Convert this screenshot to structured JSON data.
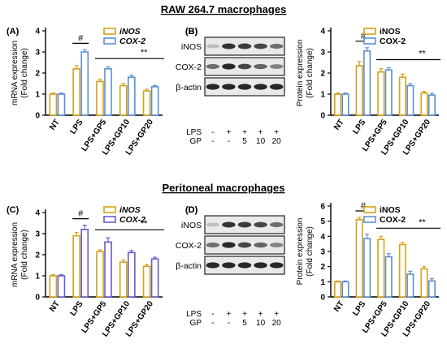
{
  "sections": [
    {
      "title": "RAW 264.7 macrophages"
    },
    {
      "title": "Peritoneal macrophages"
    }
  ],
  "colors": {
    "inos": "#d4a21b",
    "cox2": "#5b8fd4",
    "cox2_mrna_bottom": "#6a5acd",
    "bar_fill": "#ffffff",
    "axis": "#000000"
  },
  "chart_data": [
    {
      "panel": "(A)",
      "type": "bar",
      "ylabel": "mRNA expression\n(Fold change)",
      "ylim": [
        0,
        4
      ],
      "yticks": [
        0,
        1,
        2,
        3,
        4
      ],
      "categories": [
        "NT",
        "LPS",
        "LPS+GP5",
        "LPS+GP10",
        "LPS+GP20"
      ],
      "series": [
        {
          "name": "iNOS",
          "italic": true,
          "color_key": "inos",
          "values": [
            1.0,
            2.2,
            1.6,
            1.4,
            1.15
          ],
          "errors": [
            0.05,
            0.15,
            0.1,
            0.1,
            0.08
          ]
        },
        {
          "name": "COX-2",
          "italic": true,
          "color_key": "cox2",
          "values": [
            1.0,
            3.0,
            2.2,
            1.8,
            1.35
          ],
          "errors": [
            0.05,
            0.1,
            0.1,
            0.1,
            0.06
          ]
        }
      ],
      "annotations": [
        {
          "text": "#"
        },
        {
          "text": "**"
        }
      ]
    },
    {
      "panel": "(B)",
      "type": "bar",
      "ylabel": "Protein expression\n(Fold change)",
      "ylim": [
        0,
        4
      ],
      "yticks": [
        0,
        1,
        2,
        3,
        4
      ],
      "categories": [
        "NT",
        "LPS",
        "LPS+GP5",
        "LPS+GP10",
        "LPS+GP20"
      ],
      "series": [
        {
          "name": "iNOS",
          "italic": false,
          "color_key": "inos",
          "values": [
            1.0,
            2.35,
            2.05,
            1.8,
            1.05
          ],
          "errors": [
            0.05,
            0.2,
            0.15,
            0.15,
            0.08
          ]
        },
        {
          "name": "COX-2",
          "italic": false,
          "color_key": "cox2",
          "values": [
            1.0,
            3.05,
            2.15,
            1.4,
            0.95
          ],
          "errors": [
            0.05,
            0.15,
            0.1,
            0.1,
            0.08
          ]
        }
      ],
      "annotations": [
        {
          "text": "#"
        },
        {
          "text": "**"
        }
      ]
    },
    {
      "panel": "(C)",
      "type": "bar",
      "ylabel": "mRNA expression\n(Fold change)",
      "ylim": [
        0,
        4
      ],
      "yticks": [
        0,
        1,
        2,
        3,
        4
      ],
      "categories": [
        "NT",
        "LPS",
        "LPS+GP5",
        "LPS+GP10",
        "LPS+GP20"
      ],
      "series": [
        {
          "name": "iNOS",
          "italic": true,
          "color_key": "inos",
          "values": [
            1.0,
            2.9,
            2.15,
            1.65,
            1.45
          ],
          "errors": [
            0.05,
            0.15,
            0.08,
            0.1,
            0.08
          ]
        },
        {
          "name": "COX-2",
          "italic": true,
          "color_key": "cox2_mrna_bottom",
          "values": [
            1.0,
            3.2,
            2.6,
            2.1,
            1.8
          ],
          "errors": [
            0.05,
            0.2,
            0.2,
            0.1,
            0.08
          ]
        }
      ],
      "annotations": [
        {
          "text": "#"
        },
        {
          "text": "**"
        }
      ]
    },
    {
      "panel": "(D)",
      "type": "bar",
      "ylabel": "Protein expression\n(Fold change)",
      "ylim": [
        0,
        6
      ],
      "yticks": [
        0,
        1,
        2,
        3,
        4,
        5,
        6
      ],
      "categories": [
        "NT",
        "LPS",
        "LPS+GP5",
        "LPS+GP10",
        "LPS+GP20"
      ],
      "series": [
        {
          "name": "iNOS",
          "italic": false,
          "color_key": "inos",
          "values": [
            1.0,
            5.1,
            3.8,
            3.45,
            1.85
          ],
          "errors": [
            0.05,
            0.15,
            0.2,
            0.15,
            0.15
          ]
        },
        {
          "name": "COX-2",
          "italic": false,
          "color_key": "cox2",
          "values": [
            1.0,
            3.85,
            2.65,
            1.5,
            1.05
          ],
          "errors": [
            0.05,
            0.3,
            0.2,
            0.2,
            0.15
          ]
        }
      ],
      "annotations": [
        {
          "text": "#"
        },
        {
          "text": "**"
        }
      ]
    }
  ],
  "blots": [
    {
      "panel": "(B)",
      "rows": [
        "iNOS",
        "COX-2",
        "β-actin"
      ],
      "treatments": [
        {
          "label": "LPS",
          "values": [
            "-",
            "+",
            "+",
            "+",
            "+"
          ]
        },
        {
          "label": "GP",
          "values": [
            "-",
            "-",
            "5",
            "10",
            "20"
          ]
        }
      ]
    },
    {
      "panel": "(D)",
      "rows": [
        "iNOS",
        "COX-2",
        "β-actin"
      ],
      "treatments": [
        {
          "label": "LPS",
          "values": [
            "-",
            "+",
            "+",
            "+",
            "+"
          ]
        },
        {
          "label": "GP",
          "values": [
            "-",
            "-",
            "5",
            "10",
            "20"
          ]
        }
      ]
    }
  ]
}
